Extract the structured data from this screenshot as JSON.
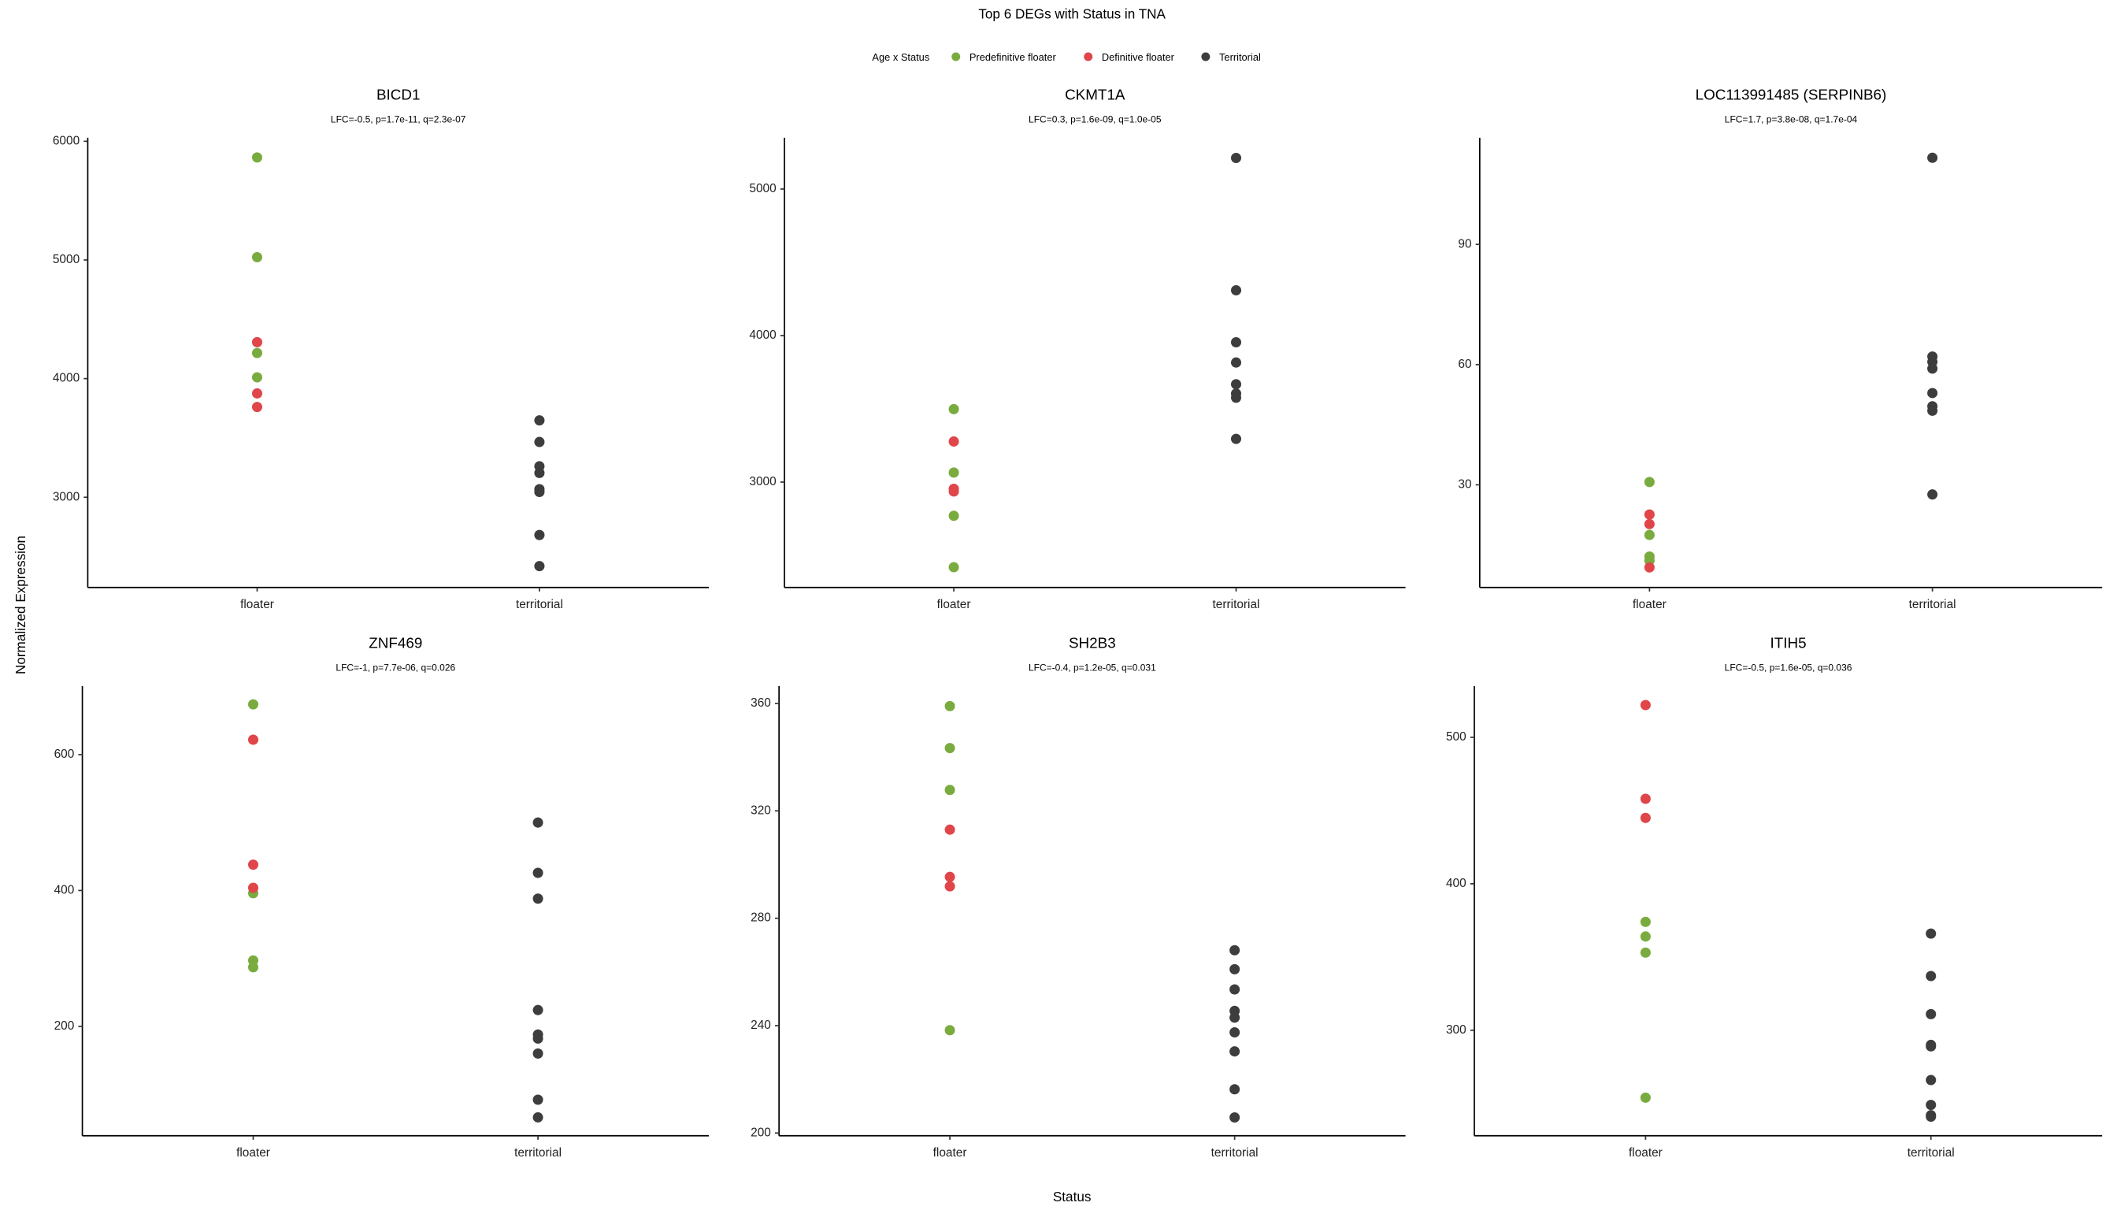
{
  "title": "Top 6 DEGs with Status in TNA",
  "legend_title": "Age x Status",
  "xlabel": "Status",
  "ylabel": "Normalized Expression",
  "chart_data": [
    {
      "type": "scatter",
      "title": "BICD1",
      "subtitle": "LFC=-0.5, p=1.7e-11, q=2.3e-07",
      "categories": [
        "floater",
        "territorial"
      ],
      "ylim": [
        2240,
        6030
      ],
      "yticks": [
        3000,
        4000,
        5000,
        6000
      ],
      "series": [
        {
          "name": "Predefinitive floater",
          "color": "#7aab3f",
          "x": [
            "floater",
            "floater",
            "floater",
            "floater"
          ],
          "values": [
            5864,
            5023,
            4216,
            4011
          ]
        },
        {
          "name": "Definitive floater",
          "color": "#e0454a",
          "x": [
            "floater",
            "floater",
            "floater"
          ],
          "values": [
            4307,
            3875,
            3761
          ]
        },
        {
          "name": "Territorial",
          "color": "#3d3d3d",
          "x": [
            "territorial",
            "territorial",
            "territorial",
            "territorial",
            "territorial",
            "territorial",
            "territorial",
            "territorial"
          ],
          "values": [
            3648,
            3466,
            3261,
            3205,
            3068,
            3045,
            2682,
            2420
          ]
        }
      ]
    },
    {
      "type": "scatter",
      "title": "CKMT1A",
      "subtitle": "LFC=0.3, p=1.6e-09, q=1.0e-05",
      "categories": [
        "floater",
        "territorial"
      ],
      "ylim": [
        2281,
        5350
      ],
      "yticks": [
        3000,
        4000,
        5000
      ],
      "series": [
        {
          "name": "Predefinitive floater",
          "color": "#7aab3f",
          "x": [
            "floater",
            "floater",
            "floater",
            "floater"
          ],
          "values": [
            3498,
            3065,
            2770,
            2419
          ]
        },
        {
          "name": "Definitive floater",
          "color": "#e0454a",
          "x": [
            "floater",
            "floater",
            "floater"
          ],
          "values": [
            3277,
            2954,
            2936
          ]
        },
        {
          "name": "Territorial",
          "color": "#3d3d3d",
          "x": [
            "territorial",
            "territorial",
            "territorial",
            "territorial",
            "territorial",
            "territorial",
            "territorial",
            "territorial"
          ],
          "values": [
            5212,
            4309,
            3954,
            3816,
            3668,
            3604,
            3576,
            3295
          ]
        }
      ]
    },
    {
      "type": "scatter",
      "title": "LOC113991485 (SERPINB6)",
      "subtitle": "LFC=1.7, p=3.8e-08, q=1.7e-04",
      "categories": [
        "floater",
        "territorial"
      ],
      "ylim": [
        4.4,
        116.6
      ],
      "yticks": [
        30,
        60,
        90
      ],
      "series": [
        {
          "name": "Predefinitive floater",
          "color": "#7aab3f",
          "x": [
            "floater",
            "floater",
            "floater",
            "floater"
          ],
          "values": [
            30.7,
            17.5,
            12.1,
            11.1
          ]
        },
        {
          "name": "Definitive floater",
          "color": "#e0454a",
          "x": [
            "floater",
            "floater",
            "floater"
          ],
          "values": [
            22.6,
            20.2,
            9.4
          ]
        },
        {
          "name": "Territorial",
          "color": "#3d3d3d",
          "x": [
            "territorial",
            "territorial",
            "territorial",
            "territorial",
            "territorial",
            "territorial",
            "territorial",
            "territorial"
          ],
          "values": [
            111.6,
            62.0,
            60.7,
            59.0,
            52.9,
            49.6,
            48.5,
            27.6
          ]
        }
      ]
    },
    {
      "type": "scatter",
      "title": "ZNF469",
      "subtitle": "LFC=-1, p=7.7e-06, q=0.026",
      "categories": [
        "floater",
        "territorial"
      ],
      "ylim": [
        39,
        701
      ],
      "yticks": [
        200,
        400,
        600
      ],
      "series": [
        {
          "name": "Predefinitive floater",
          "color": "#7aab3f",
          "x": [
            "floater",
            "floater",
            "floater",
            "floater"
          ],
          "values": [
            674,
            396,
            297,
            287
          ]
        },
        {
          "name": "Definitive floater",
          "color": "#e0454a",
          "x": [
            "floater",
            "floater",
            "floater"
          ],
          "values": [
            622,
            438,
            404
          ]
        },
        {
          "name": "Territorial",
          "color": "#3d3d3d",
          "x": [
            "territorial",
            "territorial",
            "territorial",
            "territorial",
            "territorial",
            "territorial",
            "territorial",
            "territorial",
            "territorial"
          ],
          "values": [
            500,
            426,
            388,
            224,
            188,
            182,
            160,
            92,
            66
          ]
        }
      ]
    },
    {
      "type": "scatter",
      "title": "SH2B3",
      "subtitle": "LFC=-0.4, p=1.2e-05, q=0.031",
      "categories": [
        "floater",
        "territorial"
      ],
      "ylim": [
        199,
        366.5
      ],
      "yticks": [
        200,
        240,
        280,
        320,
        360
      ],
      "series": [
        {
          "name": "Predefinitive floater",
          "color": "#7aab3f",
          "x": [
            "floater",
            "floater",
            "floater",
            "floater"
          ],
          "values": [
            359,
            343.4,
            327.8,
            238.3
          ]
        },
        {
          "name": "Definitive floater",
          "color": "#e0454a",
          "x": [
            "floater",
            "floater",
            "floater"
          ],
          "values": [
            313,
            295.4,
            291.9
          ]
        },
        {
          "name": "Territorial",
          "color": "#3d3d3d",
          "x": [
            "territorial",
            "territorial",
            "territorial",
            "territorial",
            "territorial",
            "territorial",
            "territorial",
            "territorial",
            "territorial"
          ],
          "values": [
            268.1,
            261,
            253.5,
            245.5,
            243,
            237.5,
            230.4,
            216.3,
            205.8
          ]
        }
      ]
    },
    {
      "type": "scatter",
      "title": "ITIH5",
      "subtitle": "LFC=-0.5, p=1.6e-05, q=0.036",
      "categories": [
        "floater",
        "territorial"
      ],
      "ylim": [
        228,
        535
      ],
      "yticks": [
        300,
        400,
        500
      ],
      "series": [
        {
          "name": "Predefinitive floater",
          "color": "#7aab3f",
          "x": [
            "floater",
            "floater",
            "floater",
            "floater"
          ],
          "values": [
            374,
            364,
            353,
            254
          ]
        },
        {
          "name": "Definitive floater",
          "color": "#e0454a",
          "x": [
            "floater",
            "floater",
            "floater"
          ],
          "values": [
            522,
            458,
            445
          ]
        },
        {
          "name": "Territorial",
          "color": "#3d3d3d",
          "x": [
            "territorial",
            "territorial",
            "territorial",
            "territorial",
            "territorial",
            "territorial",
            "territorial",
            "territorial",
            "territorial"
          ],
          "values": [
            366,
            337,
            311,
            290,
            289,
            266,
            249,
            242,
            241
          ]
        }
      ]
    }
  ]
}
